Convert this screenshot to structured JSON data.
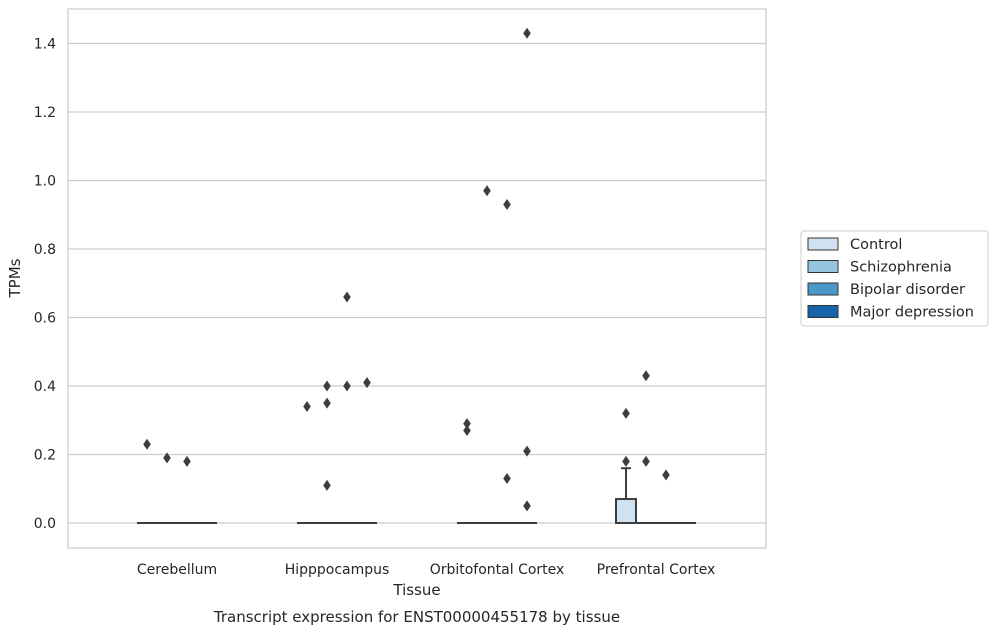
{
  "chart_data": {
    "type": "box",
    "title": "",
    "xlabel": "Tissue",
    "ylabel": "TPMs",
    "caption": "Transcript expression for ENST00000455178 by tissue",
    "ylim": [
      -0.07,
      1.5
    ],
    "yticks": [
      "0.0",
      "0.2",
      "0.4",
      "0.6",
      "0.8",
      "1.0",
      "1.2",
      "1.4"
    ],
    "grid": "horizontal",
    "legend_position": "right",
    "categories": [
      "Cerebellum",
      "Hipppocampus",
      "Orbitofontal Cortex",
      "Prefrontal Cortex"
    ],
    "series": [
      {
        "name": "Control",
        "color": "#d0e1f2"
      },
      {
        "name": "Schizophrenia",
        "color": "#94c4df"
      },
      {
        "name": "Bipolar disorder",
        "color": "#4a98c9"
      },
      {
        "name": "Major depression",
        "color": "#1764ab"
      }
    ],
    "boxes": [
      {
        "category": "Cerebellum",
        "series": "Control",
        "q1": 0,
        "median": 0,
        "q3": 0,
        "whisker_low": 0,
        "whisker_high": 0,
        "outliers": [
          0.23
        ]
      },
      {
        "category": "Cerebellum",
        "series": "Schizophrenia",
        "q1": 0,
        "median": 0,
        "q3": 0,
        "whisker_low": 0,
        "whisker_high": 0,
        "outliers": [
          0.19
        ]
      },
      {
        "category": "Cerebellum",
        "series": "Bipolar disorder",
        "q1": 0,
        "median": 0,
        "q3": 0,
        "whisker_low": 0,
        "whisker_high": 0,
        "outliers": [
          0.18
        ]
      },
      {
        "category": "Cerebellum",
        "series": "Major depression",
        "q1": 0,
        "median": 0,
        "q3": 0,
        "whisker_low": 0,
        "whisker_high": 0,
        "outliers": []
      },
      {
        "category": "Hipppocampus",
        "series": "Control",
        "q1": 0,
        "median": 0,
        "q3": 0,
        "whisker_low": 0,
        "whisker_high": 0,
        "outliers": [
          0.34
        ]
      },
      {
        "category": "Hipppocampus",
        "series": "Schizophrenia",
        "q1": 0,
        "median": 0,
        "q3": 0,
        "whisker_low": 0,
        "whisker_high": 0,
        "outliers": [
          0.4,
          0.35,
          0.11
        ]
      },
      {
        "category": "Hipppocampus",
        "series": "Bipolar disorder",
        "q1": 0,
        "median": 0,
        "q3": 0,
        "whisker_low": 0,
        "whisker_high": 0,
        "outliers": [
          0.66,
          0.4
        ]
      },
      {
        "category": "Hipppocampus",
        "series": "Major depression",
        "q1": 0,
        "median": 0,
        "q3": 0,
        "whisker_low": 0,
        "whisker_high": 0,
        "outliers": [
          0.41
        ]
      },
      {
        "category": "Orbitofontal Cortex",
        "series": "Control",
        "q1": 0,
        "median": 0,
        "q3": 0,
        "whisker_low": 0,
        "whisker_high": 0,
        "outliers": [
          0.29,
          0.27
        ]
      },
      {
        "category": "Orbitofontal Cortex",
        "series": "Schizophrenia",
        "q1": 0,
        "median": 0,
        "q3": 0,
        "whisker_low": 0,
        "whisker_high": 0,
        "outliers": [
          0.97
        ]
      },
      {
        "category": "Orbitofontal Cortex",
        "series": "Bipolar disorder",
        "q1": 0,
        "median": 0,
        "q3": 0,
        "whisker_low": 0,
        "whisker_high": 0,
        "outliers": [
          0.93,
          0.13
        ]
      },
      {
        "category": "Orbitofontal Cortex",
        "series": "Major depression",
        "q1": 0,
        "median": 0,
        "q3": 0,
        "whisker_low": 0,
        "whisker_high": 0,
        "outliers": [
          1.43,
          0.21,
          0.05
        ]
      },
      {
        "category": "Prefrontal Cortex",
        "series": "Control",
        "q1": 0,
        "median": 0,
        "q3": 0.07,
        "whisker_low": 0,
        "whisker_high": 0.16,
        "outliers": [
          0.32,
          0.18
        ]
      },
      {
        "category": "Prefrontal Cortex",
        "series": "Schizophrenia",
        "q1": 0,
        "median": 0,
        "q3": 0,
        "whisker_low": 0,
        "whisker_high": 0,
        "outliers": [
          0.43,
          0.18
        ]
      },
      {
        "category": "Prefrontal Cortex",
        "series": "Bipolar disorder",
        "q1": 0,
        "median": 0,
        "q3": 0,
        "whisker_low": 0,
        "whisker_high": 0,
        "outliers": [
          0.14
        ]
      },
      {
        "category": "Prefrontal Cortex",
        "series": "Major depression",
        "q1": 0,
        "median": 0,
        "q3": 0,
        "whisker_low": 0,
        "whisker_high": 0,
        "outliers": []
      }
    ]
  }
}
